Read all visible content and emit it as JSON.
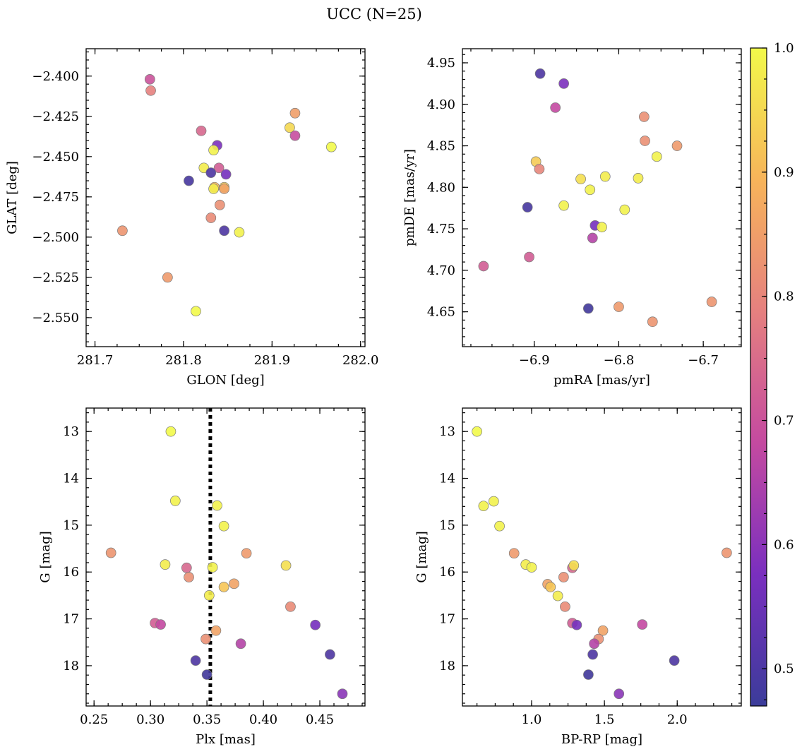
{
  "title": "UCC (N=25)",
  "colormap": "plasma",
  "colorbar": {
    "range": [
      0.47,
      1.0
    ],
    "ticks": [
      0.5,
      0.6,
      0.7,
      0.8,
      0.9,
      1.0
    ],
    "tick_labels": [
      "0.5",
      "0.6",
      "0.7",
      "0.8",
      "0.9",
      "1.0"
    ]
  },
  "chart_data": [
    {
      "id": "radec",
      "type": "scatter",
      "xlabel": "GLON [deg]",
      "ylabel": "GLAT [deg]",
      "xlim": [
        281.69,
        282.005
      ],
      "ylim": [
        -2.568,
        -2.383
      ],
      "xticks": [
        281.7,
        281.8,
        281.9,
        282.0
      ],
      "xtick_labels": [
        "281.7",
        "281.8",
        "281.9",
        "282.0"
      ],
      "yticks": [
        -2.55,
        -2.525,
        -2.5,
        -2.475,
        -2.45,
        -2.425,
        -2.4
      ],
      "ytick_labels": [
        "−2.550",
        "−2.525",
        "−2.500",
        "−2.475",
        "−2.450",
        "−2.425",
        "−2.400"
      ],
      "points": [
        {
          "x": 281.762,
          "y": -2.402,
          "c": 0.7
        },
        {
          "x": 281.763,
          "y": -2.409,
          "c": 0.79
        },
        {
          "x": 281.926,
          "y": -2.423,
          "c": 0.85
        },
        {
          "x": 281.92,
          "y": -2.432,
          "c": 0.95
        },
        {
          "x": 281.82,
          "y": -2.434,
          "c": 0.74
        },
        {
          "x": 281.926,
          "y": -2.437,
          "c": 0.69
        },
        {
          "x": 281.838,
          "y": -2.443,
          "c": 0.58
        },
        {
          "x": 281.967,
          "y": -2.444,
          "c": 1.0
        },
        {
          "x": 281.834,
          "y": -2.446,
          "c": 0.99
        },
        {
          "x": 281.823,
          "y": -2.457,
          "c": 0.98
        },
        {
          "x": 281.84,
          "y": -2.457,
          "c": 0.72
        },
        {
          "x": 281.831,
          "y": -2.46,
          "c": 0.5
        },
        {
          "x": 281.848,
          "y": -2.461,
          "c": 0.57
        },
        {
          "x": 281.806,
          "y": -2.465,
          "c": 0.49
        },
        {
          "x": 281.835,
          "y": -2.469,
          "c": 0.9
        },
        {
          "x": 281.846,
          "y": -2.469,
          "c": 0.93
        },
        {
          "x": 281.834,
          "y": -2.47,
          "c": 0.98
        },
        {
          "x": 281.846,
          "y": -2.47,
          "c": 0.86
        },
        {
          "x": 281.841,
          "y": -2.48,
          "c": 0.82
        },
        {
          "x": 281.831,
          "y": -2.488,
          "c": 0.81
        },
        {
          "x": 281.731,
          "y": -2.496,
          "c": 0.83
        },
        {
          "x": 281.846,
          "y": -2.496,
          "c": 0.5
        },
        {
          "x": 281.863,
          "y": -2.497,
          "c": 0.99
        },
        {
          "x": 281.782,
          "y": -2.525,
          "c": 0.84
        },
        {
          "x": 281.814,
          "y": -2.546,
          "c": 1.0
        }
      ]
    },
    {
      "id": "pm",
      "type": "scatter",
      "xlabel": "pmRA [mas/yr]",
      "ylabel": "pmDE [mas/yr]",
      "xlim": [
        -6.985,
        -6.655
      ],
      "ylim": [
        4.608,
        4.967
      ],
      "xticks": [
        -6.9,
        -6.8,
        -6.7
      ],
      "xtick_labels": [
        "−6.9",
        "−6.8",
        "−6.7"
      ],
      "yticks": [
        4.65,
        4.7,
        4.75,
        4.8,
        4.85,
        4.9,
        4.95
      ],
      "ytick_labels": [
        "4.65",
        "4.70",
        "4.75",
        "4.80",
        "4.85",
        "4.90",
        "4.95"
      ],
      "points": [
        {
          "x": -6.893,
          "y": 4.937,
          "c": 0.5
        },
        {
          "x": -6.865,
          "y": 4.925,
          "c": 0.58
        },
        {
          "x": -6.875,
          "y": 4.896,
          "c": 0.68
        },
        {
          "x": -6.77,
          "y": 4.885,
          "c": 0.82
        },
        {
          "x": -6.769,
          "y": 4.856,
          "c": 0.82
        },
        {
          "x": -6.731,
          "y": 4.85,
          "c": 0.84
        },
        {
          "x": -6.755,
          "y": 4.837,
          "c": 0.99
        },
        {
          "x": -6.898,
          "y": 4.831,
          "c": 0.93
        },
        {
          "x": -6.894,
          "y": 4.822,
          "c": 0.8
        },
        {
          "x": -6.816,
          "y": 4.813,
          "c": 0.98
        },
        {
          "x": -6.845,
          "y": 4.81,
          "c": 0.96
        },
        {
          "x": -6.777,
          "y": 4.811,
          "c": 0.98
        },
        {
          "x": -6.834,
          "y": 4.797,
          "c": 0.99
        },
        {
          "x": -6.865,
          "y": 4.778,
          "c": 0.99
        },
        {
          "x": -6.908,
          "y": 4.776,
          "c": 0.49
        },
        {
          "x": -6.793,
          "y": 4.773,
          "c": 0.99
        },
        {
          "x": -6.828,
          "y": 4.754,
          "c": 0.57
        },
        {
          "x": -6.82,
          "y": 4.752,
          "c": 0.99
        },
        {
          "x": -6.831,
          "y": 4.739,
          "c": 0.66
        },
        {
          "x": -6.906,
          "y": 4.716,
          "c": 0.72
        },
        {
          "x": -6.96,
          "y": 4.705,
          "c": 0.72
        },
        {
          "x": -6.836,
          "y": 4.654,
          "c": 0.48
        },
        {
          "x": -6.8,
          "y": 4.656,
          "c": 0.84
        },
        {
          "x": -6.69,
          "y": 4.662,
          "c": 0.83
        },
        {
          "x": -6.76,
          "y": 4.638,
          "c": 0.83
        }
      ]
    },
    {
      "id": "plx",
      "type": "scatter",
      "xlabel": "Plx [mas]",
      "ylabel": "G [mag]",
      "xlim": [
        0.243,
        0.49
      ],
      "ylim": [
        18.86,
        12.5
      ],
      "y_inverted": true,
      "xticks": [
        0.25,
        0.3,
        0.35,
        0.4,
        0.45
      ],
      "xtick_labels": [
        "0.25",
        "0.30",
        "0.35",
        "0.40",
        "0.45"
      ],
      "yticks": [
        13,
        14,
        15,
        16,
        17,
        18
      ],
      "ytick_labels": [
        "13",
        "14",
        "15",
        "16",
        "17",
        "18"
      ],
      "vline": {
        "x": 0.353,
        "style": "dotted",
        "color": "#000000"
      },
      "points": [
        {
          "x": 0.318,
          "y": 13.0,
          "c": 1.0
        },
        {
          "x": 0.322,
          "y": 14.48,
          "c": 0.99
        },
        {
          "x": 0.359,
          "y": 14.58,
          "c": 0.99
        },
        {
          "x": 0.365,
          "y": 15.02,
          "c": 0.99
        },
        {
          "x": 0.265,
          "y": 15.59,
          "c": 0.83
        },
        {
          "x": 0.385,
          "y": 15.6,
          "c": 0.84
        },
        {
          "x": 0.313,
          "y": 15.84,
          "c": 0.98
        },
        {
          "x": 0.42,
          "y": 15.86,
          "c": 0.96
        },
        {
          "x": 0.355,
          "y": 15.9,
          "c": 0.99
        },
        {
          "x": 0.332,
          "y": 15.91,
          "c": 0.74
        },
        {
          "x": 0.334,
          "y": 16.11,
          "c": 0.82
        },
        {
          "x": 0.374,
          "y": 16.25,
          "c": 0.86
        },
        {
          "x": 0.365,
          "y": 16.32,
          "c": 0.92
        },
        {
          "x": 0.352,
          "y": 16.5,
          "c": 0.98
        },
        {
          "x": 0.424,
          "y": 16.74,
          "c": 0.81
        },
        {
          "x": 0.304,
          "y": 17.09,
          "c": 0.72
        },
        {
          "x": 0.309,
          "y": 17.12,
          "c": 0.68
        },
        {
          "x": 0.446,
          "y": 17.13,
          "c": 0.57
        },
        {
          "x": 0.358,
          "y": 17.25,
          "c": 0.86
        },
        {
          "x": 0.349,
          "y": 17.43,
          "c": 0.82
        },
        {
          "x": 0.38,
          "y": 17.53,
          "c": 0.66
        },
        {
          "x": 0.459,
          "y": 17.76,
          "c": 0.5
        },
        {
          "x": 0.34,
          "y": 17.89,
          "c": 0.5
        },
        {
          "x": 0.35,
          "y": 18.19,
          "c": 0.48
        },
        {
          "x": 0.47,
          "y": 18.6,
          "c": 0.6
        }
      ]
    },
    {
      "id": "cmd",
      "type": "scatter",
      "xlabel": "BP-RP [mag]",
      "ylabel": "G [mag]",
      "xlim": [
        0.525,
        2.44
      ],
      "ylim": [
        18.86,
        12.5
      ],
      "y_inverted": true,
      "xticks": [
        1.0,
        1.5,
        2.0
      ],
      "xtick_labels": [
        "1.0",
        "1.5",
        "2.0"
      ],
      "yticks": [
        13,
        14,
        15,
        16,
        17,
        18
      ],
      "ytick_labels": [
        "13",
        "14",
        "15",
        "16",
        "17",
        "18"
      ],
      "points": [
        {
          "x": 0.625,
          "y": 13.0,
          "c": 1.0
        },
        {
          "x": 0.67,
          "y": 14.59,
          "c": 0.99
        },
        {
          "x": 0.74,
          "y": 14.49,
          "c": 0.99
        },
        {
          "x": 0.78,
          "y": 15.02,
          "c": 0.99
        },
        {
          "x": 0.88,
          "y": 15.6,
          "c": 0.84
        },
        {
          "x": 2.34,
          "y": 15.59,
          "c": 0.83
        },
        {
          "x": 0.96,
          "y": 15.84,
          "c": 0.98
        },
        {
          "x": 1.0,
          "y": 15.9,
          "c": 0.99
        },
        {
          "x": 1.28,
          "y": 15.91,
          "c": 0.74
        },
        {
          "x": 1.29,
          "y": 15.86,
          "c": 0.96
        },
        {
          "x": 1.22,
          "y": 16.11,
          "c": 0.82
        },
        {
          "x": 1.11,
          "y": 16.26,
          "c": 0.86
        },
        {
          "x": 1.13,
          "y": 16.32,
          "c": 0.92
        },
        {
          "x": 1.18,
          "y": 16.51,
          "c": 0.98
        },
        {
          "x": 1.23,
          "y": 16.74,
          "c": 0.81
        },
        {
          "x": 1.28,
          "y": 17.09,
          "c": 0.72
        },
        {
          "x": 1.31,
          "y": 17.13,
          "c": 0.57
        },
        {
          "x": 1.76,
          "y": 17.12,
          "c": 0.68
        },
        {
          "x": 1.49,
          "y": 17.25,
          "c": 0.86
        },
        {
          "x": 1.46,
          "y": 17.43,
          "c": 0.82
        },
        {
          "x": 1.43,
          "y": 17.53,
          "c": 0.66
        },
        {
          "x": 1.42,
          "y": 17.76,
          "c": 0.5
        },
        {
          "x": 1.98,
          "y": 17.89,
          "c": 0.5
        },
        {
          "x": 1.39,
          "y": 18.19,
          "c": 0.48
        },
        {
          "x": 1.6,
          "y": 18.6,
          "c": 0.6
        }
      ]
    }
  ]
}
